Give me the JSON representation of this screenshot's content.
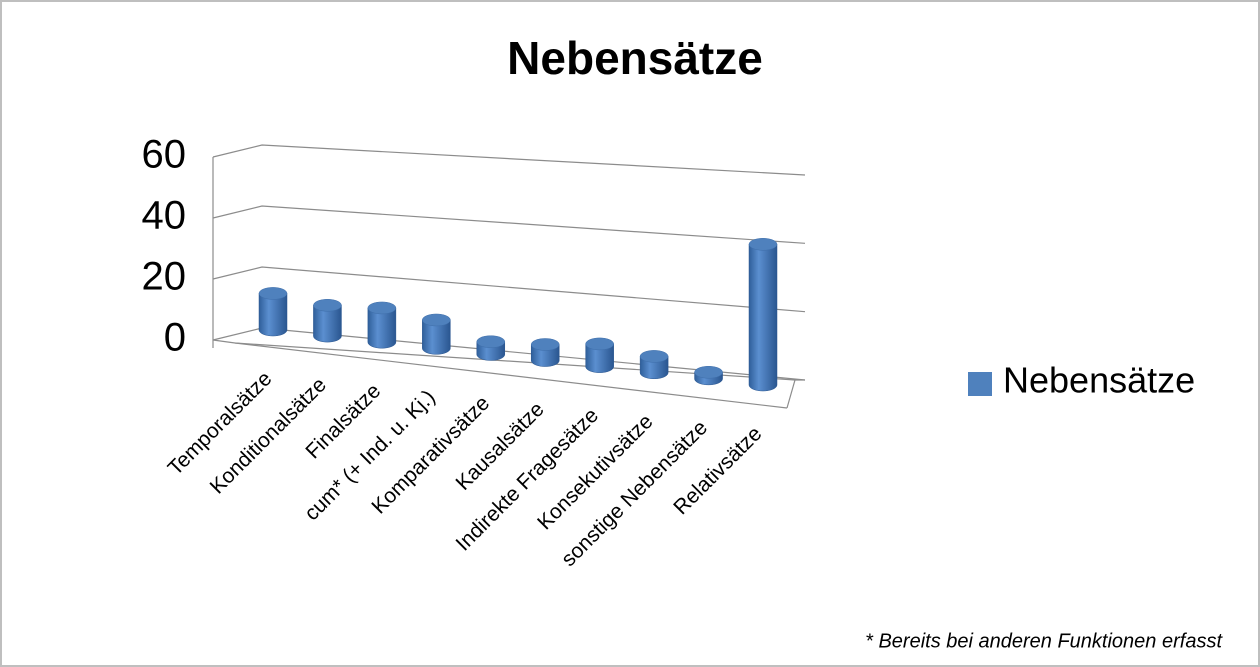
{
  "chart_data": {
    "type": "bar3d",
    "title": "Nebensätze",
    "categories": [
      "Temporalsätze",
      "Konditionalsätze",
      "Finalsätze",
      "cum* (+ Ind. u. Kj.)",
      "Komparativsätze",
      "Kausalsätze",
      "Indirekte Fragesätze",
      "Konsekutivsätze",
      "sonstige Nebensätze",
      "Relativsätze"
    ],
    "series": [
      {
        "name": "Nebensätze",
        "color": "#4f81bd",
        "values": [
          12,
          10,
          11,
          9,
          4,
          5,
          7,
          5,
          2,
          42
        ]
      }
    ],
    "ylim": [
      0,
      60
    ],
    "yticks": [
      0,
      20,
      40,
      60
    ],
    "grid": true,
    "legend": "right",
    "annotation": "* Bereits bei anderen Funktionen erfasst"
  }
}
